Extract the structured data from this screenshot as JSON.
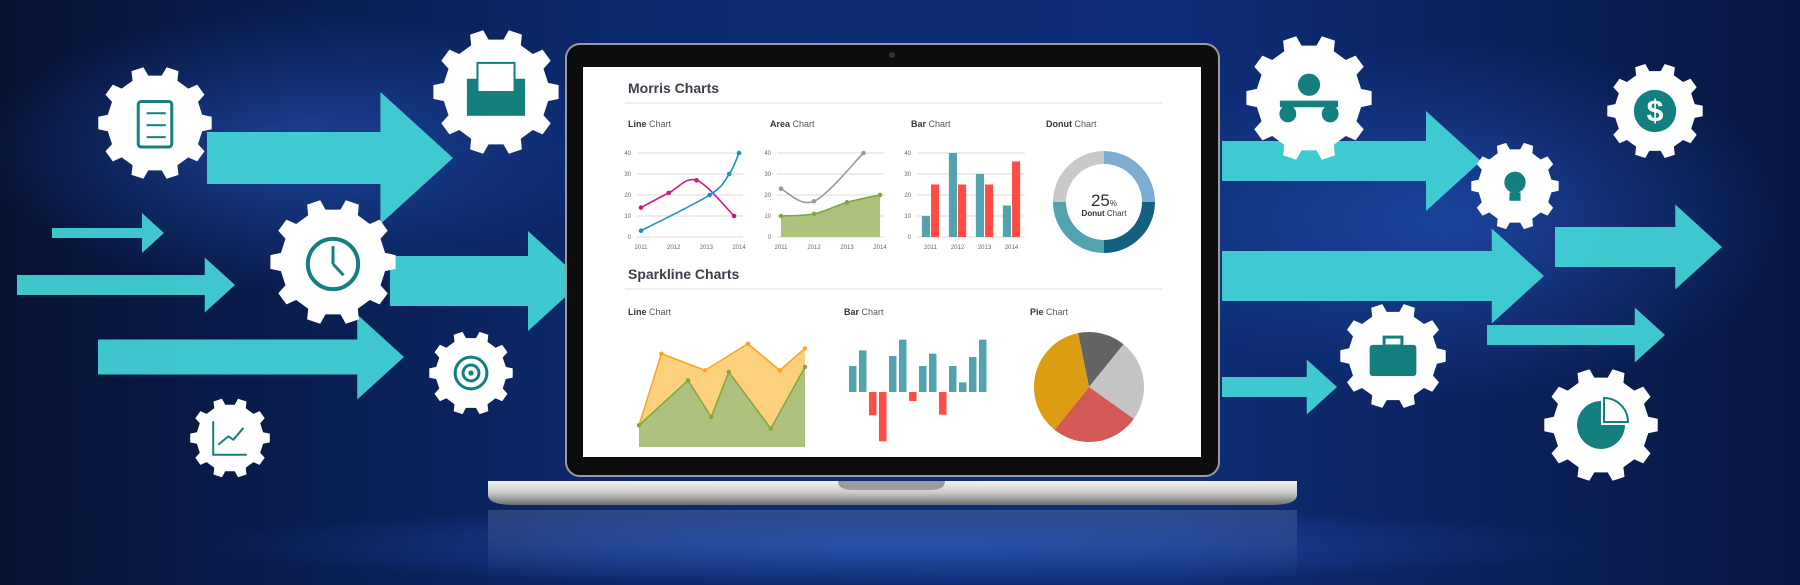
{
  "morris": {
    "title": "Morris Charts",
    "line": {
      "bold": "Line",
      "rest": " Chart"
    },
    "area": {
      "bold": "Area",
      "rest": " Chart"
    },
    "bar": {
      "bold": "Bar",
      "rest": " Chart"
    },
    "donut": {
      "bold": "Donut",
      "rest": " Chart",
      "center_value": "25",
      "center_unit": "%",
      "center_label_bold": "Donut",
      "center_label_rest": " Chart"
    }
  },
  "sparkline": {
    "title": "Sparkline Charts",
    "line": {
      "bold": "Line",
      "rest": " Chart"
    },
    "bar": {
      "bold": "Bar",
      "rest": " Chart"
    },
    "pie": {
      "bold": "Pie",
      "rest": " Chart"
    }
  },
  "colors": {
    "arrow": "#43d6d8",
    "icon": "#13807f",
    "magenta": "#d6177f",
    "blue": "#1a93c8",
    "green_area": "#afc17e",
    "green_line": "#7ea83a",
    "gray_line": "#9a9a9a",
    "teal_bar": "#53a3ae",
    "red_bar": "#ff4c44",
    "orange": "#f5a623"
  },
  "icons_left": [
    "clipboard-icon",
    "envelope-icon",
    "alarm-clock-icon",
    "target-icon",
    "growth-chart-icon"
  ],
  "icons_right": [
    "meeting-icon",
    "dollar-icon",
    "lightbulb-icon",
    "briefcase-icon",
    "pie-chart-icon"
  ],
  "chart_data": [
    {
      "type": "line",
      "title": "Line Chart",
      "x_ticks": [
        "2011",
        "2012",
        "2013",
        "2014"
      ],
      "y_ticks": [
        0,
        10,
        20,
        30,
        40
      ],
      "ylim": [
        0,
        40
      ],
      "grid": true,
      "series": [
        {
          "color": "#d6177f",
          "x": [
            2011,
            2011.85,
            2012.7,
            2013.85
          ],
          "y": [
            14,
            21,
            27,
            10
          ]
        },
        {
          "color": "#1a93c8",
          "x": [
            2011,
            2013.1,
            2013.7,
            2014
          ],
          "y": [
            3,
            20,
            30,
            40
          ]
        }
      ]
    },
    {
      "type": "area",
      "title": "Area Chart",
      "x_ticks": [
        "2011",
        "2012",
        "2013",
        "2014"
      ],
      "y_ticks": [
        0,
        10,
        20,
        30,
        40
      ],
      "ylim": [
        0,
        40
      ],
      "grid": true,
      "series": [
        {
          "color": "#9a9a9a",
          "x": [
            2011,
            2012,
            2013.5
          ],
          "y": [
            23,
            17,
            40
          ],
          "fill": false
        },
        {
          "color": "#7ea83a",
          "x": [
            2011,
            2012,
            2013,
            2014
          ],
          "y": [
            10,
            11,
            16.5,
            20
          ],
          "fill": true
        }
      ]
    },
    {
      "type": "bar",
      "title": "Bar Chart",
      "categories": [
        "2011",
        "2012",
        "2013",
        "2014"
      ],
      "y_ticks": [
        0,
        10,
        20,
        30,
        40
      ],
      "ylim": [
        0,
        40
      ],
      "grid": true,
      "series": [
        {
          "color": "#53a3ae",
          "values": [
            10,
            40,
            30,
            15
          ]
        },
        {
          "color": "#ff4c44",
          "values": [
            25,
            25,
            25,
            36
          ]
        }
      ]
    },
    {
      "type": "pie",
      "subtype": "donut",
      "title": "Donut Chart",
      "values": [
        25,
        25,
        25,
        25
      ],
      "colors": [
        "#7eadd3",
        "#13617e",
        "#52a3ad",
        "#c9c9c9"
      ]
    },
    {
      "type": "area",
      "title": "Line Chart",
      "sparkline": true,
      "series": [
        {
          "color": "#f5a623",
          "x": [
            0,
            1.35,
            3.98,
            6.56,
            8.48,
            10
          ],
          "y": [
            6.5,
            28,
            23,
            31,
            23,
            29.6
          ]
        },
        {
          "color": "#7ea83a",
          "x": [
            0,
            2.95,
            4.35,
            5.41,
            7.94,
            10
          ],
          "y": [
            6.5,
            20,
            9,
            22.5,
            5.5,
            24
          ]
        }
      ]
    },
    {
      "type": "bar",
      "title": "Bar Chart",
      "sparkline": true,
      "values": [
        7.8,
        12.5,
        -7,
        -14.8,
        10.8,
        15.7,
        -2.7,
        7.8,
        11.5,
        -6.8,
        7.8,
        2.9,
        10.5,
        15.7
      ],
      "positive_color": "#53a3ae",
      "negative_color": "#ff4c44"
    },
    {
      "type": "pie",
      "title": "Pie Chart",
      "sparkline": true,
      "values": [
        14,
        24,
        26,
        36
      ],
      "colors": [
        "#636363",
        "#c4c4c4",
        "#d45a55",
        "#dd9d12"
      ]
    }
  ]
}
